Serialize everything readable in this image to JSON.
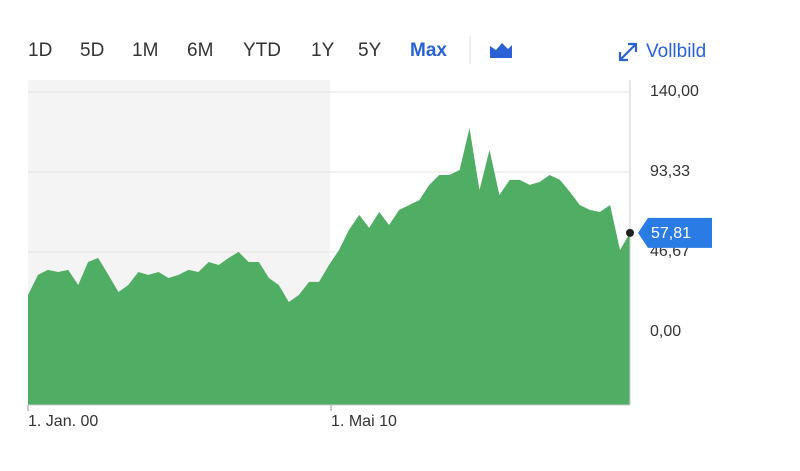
{
  "toolbar": {
    "ranges": [
      "1D",
      "5D",
      "1M",
      "6M",
      "YTD",
      "1Y",
      "5Y",
      "Max"
    ],
    "active": 7,
    "fullscreen": "Vollbild"
  },
  "chart_data": {
    "type": "area",
    "x": [
      2000,
      2000.34,
      2000.68,
      2001.03,
      2001.37,
      2001.71,
      2002.05,
      2002.39,
      2002.74,
      2003.08,
      2003.42,
      2003.76,
      2004.1,
      2004.45,
      2004.79,
      2005.13,
      2005.47,
      2005.81,
      2006.16,
      2006.5,
      2006.84,
      2007.18,
      2007.52,
      2007.87,
      2008.21,
      2008.55,
      2008.89,
      2009.23,
      2009.58,
      2009.92,
      2010.26,
      2010.6,
      2010.94,
      2011.29,
      2011.63,
      2011.97,
      2012.31,
      2012.65,
      2013,
      2013.34,
      2013.68,
      2014.02,
      2014.36,
      2014.71,
      2015.05,
      2015.39,
      2015.73,
      2016.07,
      2016.42,
      2016.76,
      2017.1,
      2017.44,
      2017.78,
      2018.13,
      2018.47,
      2018.81,
      2019.15,
      2019.49,
      2019.84,
      2020.18,
      2020.52
    ],
    "series": [
      {
        "color": "#50ad64",
        "values": [
          21.6,
          33.3,
          36.2,
          35.0,
          36.2,
          27.4,
          40.8,
          43.2,
          33.3,
          23.3,
          27.4,
          35.0,
          33.3,
          35.0,
          31.5,
          33.3,
          36.2,
          35.0,
          40.8,
          39.1,
          43.2,
          46.7,
          40.8,
          40.8,
          31.5,
          27.4,
          17.5,
          21.6,
          29.2,
          29.2,
          39.1,
          47.8,
          59.5,
          68.3,
          60.7,
          70.0,
          62.4,
          71.2,
          74.1,
          77.0,
          85.8,
          91.6,
          91.6,
          94.5,
          119.0,
          82.8,
          106.2,
          79.9,
          88.7,
          88.7,
          85.8,
          87.5,
          91.6,
          88.7,
          81.7,
          74.1,
          71.2,
          70.0,
          74.1,
          47.8,
          57.81
        ]
      }
    ],
    "last_price": {
      "value": 57.81,
      "label": "57,81"
    },
    "xlim": [
      2000,
      2020.52
    ],
    "xticks": [
      {
        "value": 2000,
        "label": "1. Jan. 00"
      },
      {
        "value": 2010.33,
        "label": "1. Mai 10"
      }
    ],
    "ylim": [
      -42.6,
      147
    ],
    "yticks": [
      {
        "value": 140,
        "label": "140,00"
      },
      {
        "value": 93.33,
        "label": "93,33"
      },
      {
        "value": 46.67,
        "label": "46,67"
      },
      {
        "value": 0,
        "label": "0,00"
      }
    ],
    "grid": true
  }
}
